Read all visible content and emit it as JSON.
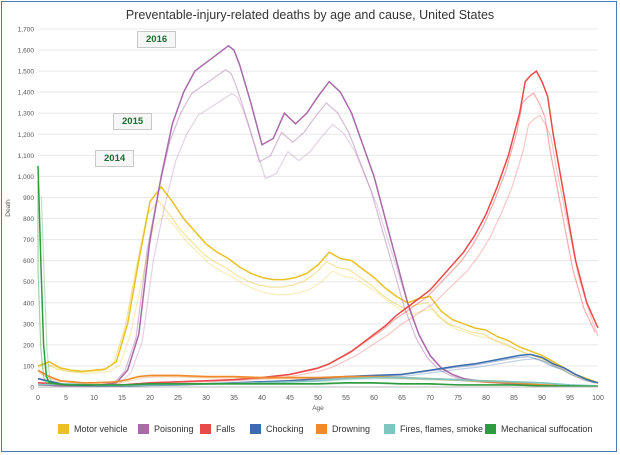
{
  "chart_data": {
    "type": "line",
    "title": "Preventable-injury-related deaths by age and cause, United States",
    "xlabel": "Age",
    "ylabel": "Death",
    "xlim": [
      0,
      100
    ],
    "ylim": [
      0,
      1700
    ],
    "x_ticks": [
      0,
      5,
      10,
      15,
      20,
      25,
      30,
      35,
      40,
      45,
      50,
      55,
      60,
      65,
      70,
      75,
      80,
      85,
      90,
      95,
      100
    ],
    "y_ticks": [
      0,
      100,
      200,
      300,
      400,
      500,
      600,
      700,
      800,
      900,
      1000,
      1100,
      1200,
      1300,
      1400,
      1500,
      1600,
      1700
    ],
    "y_tick_labels": [
      "0",
      "100",
      "200",
      "300",
      "400",
      "500",
      "600",
      "700",
      "800",
      "900",
      "1,000",
      "1,100",
      "1,200",
      "1,300",
      "1,400",
      "1,500",
      "1,600",
      "1,700"
    ],
    "years": [
      "2014",
      "2015",
      "2016"
    ],
    "grid": "horizontal",
    "legend_position": "bottom",
    "series": [
      {
        "name": "Motor vehicle",
        "color": "#e8c224",
        "points": [
          [
            0,
            100
          ],
          [
            2,
            120
          ],
          [
            4,
            90
          ],
          [
            6,
            80
          ],
          [
            8,
            75
          ],
          [
            10,
            80
          ],
          [
            12,
            85
          ],
          [
            14,
            120
          ],
          [
            16,
            300
          ],
          [
            18,
            600
          ],
          [
            20,
            880
          ],
          [
            22,
            950
          ],
          [
            24,
            880
          ],
          [
            26,
            800
          ],
          [
            28,
            740
          ],
          [
            30,
            680
          ],
          [
            32,
            640
          ],
          [
            34,
            610
          ],
          [
            36,
            570
          ],
          [
            38,
            540
          ],
          [
            40,
            520
          ],
          [
            42,
            510
          ],
          [
            44,
            510
          ],
          [
            46,
            520
          ],
          [
            48,
            540
          ],
          [
            50,
            580
          ],
          [
            52,
            640
          ],
          [
            54,
            610
          ],
          [
            56,
            600
          ],
          [
            58,
            560
          ],
          [
            60,
            520
          ],
          [
            62,
            470
          ],
          [
            64,
            430
          ],
          [
            66,
            400
          ],
          [
            68,
            420
          ],
          [
            70,
            430
          ],
          [
            72,
            360
          ],
          [
            74,
            320
          ],
          [
            76,
            300
          ],
          [
            78,
            280
          ],
          [
            80,
            270
          ],
          [
            82,
            240
          ],
          [
            84,
            220
          ],
          [
            86,
            190
          ],
          [
            88,
            170
          ],
          [
            90,
            150
          ],
          [
            92,
            120
          ],
          [
            94,
            90
          ],
          [
            96,
            60
          ],
          [
            98,
            40
          ],
          [
            100,
            20
          ]
        ]
      },
      {
        "name": "Poisoning",
        "color": "#a86aa8",
        "points": [
          [
            0,
            10
          ],
          [
            5,
            5
          ],
          [
            10,
            5
          ],
          [
            14,
            20
          ],
          [
            16,
            80
          ],
          [
            18,
            250
          ],
          [
            20,
            700
          ],
          [
            22,
            1000
          ],
          [
            24,
            1250
          ],
          [
            26,
            1400
          ],
          [
            28,
            1500
          ],
          [
            30,
            1540
          ],
          [
            32,
            1580
          ],
          [
            34,
            1620
          ],
          [
            35,
            1600
          ],
          [
            36,
            1530
          ],
          [
            38,
            1350
          ],
          [
            40,
            1150
          ],
          [
            42,
            1180
          ],
          [
            44,
            1300
          ],
          [
            46,
            1250
          ],
          [
            48,
            1300
          ],
          [
            50,
            1380
          ],
          [
            52,
            1450
          ],
          [
            54,
            1400
          ],
          [
            56,
            1300
          ],
          [
            58,
            1150
          ],
          [
            60,
            1000
          ],
          [
            62,
            800
          ],
          [
            64,
            600
          ],
          [
            66,
            400
          ],
          [
            68,
            250
          ],
          [
            70,
            150
          ],
          [
            72,
            90
          ],
          [
            74,
            60
          ],
          [
            76,
            40
          ],
          [
            80,
            25
          ],
          [
            85,
            15
          ],
          [
            90,
            10
          ],
          [
            95,
            5
          ],
          [
            100,
            3
          ]
        ]
      },
      {
        "name": "Falls",
        "color": "#e84a4a",
        "points": [
          [
            0,
            20
          ],
          [
            10,
            5
          ],
          [
            15,
            10
          ],
          [
            20,
            20
          ],
          [
            25,
            25
          ],
          [
            30,
            30
          ],
          [
            35,
            35
          ],
          [
            40,
            45
          ],
          [
            45,
            60
          ],
          [
            50,
            90
          ],
          [
            52,
            110
          ],
          [
            54,
            140
          ],
          [
            56,
            170
          ],
          [
            58,
            210
          ],
          [
            60,
            250
          ],
          [
            62,
            290
          ],
          [
            64,
            340
          ],
          [
            66,
            380
          ],
          [
            68,
            420
          ],
          [
            70,
            460
          ],
          [
            72,
            520
          ],
          [
            74,
            580
          ],
          [
            76,
            640
          ],
          [
            78,
            720
          ],
          [
            80,
            820
          ],
          [
            82,
            950
          ],
          [
            84,
            1100
          ],
          [
            86,
            1300
          ],
          [
            87,
            1450
          ],
          [
            88,
            1480
          ],
          [
            89,
            1500
          ],
          [
            90,
            1450
          ],
          [
            91,
            1380
          ],
          [
            92,
            1200
          ],
          [
            94,
            900
          ],
          [
            96,
            600
          ],
          [
            98,
            400
          ],
          [
            100,
            280
          ]
        ]
      },
      {
        "name": "Chocking",
        "color": "#3d6bab",
        "points": [
          [
            0,
            40
          ],
          [
            5,
            10
          ],
          [
            10,
            5
          ],
          [
            15,
            5
          ],
          [
            20,
            8
          ],
          [
            25,
            10
          ],
          [
            30,
            15
          ],
          [
            35,
            20
          ],
          [
            40,
            25
          ],
          [
            45,
            30
          ],
          [
            50,
            40
          ],
          [
            55,
            50
          ],
          [
            60,
            55
          ],
          [
            65,
            60
          ],
          [
            70,
            80
          ],
          [
            75,
            100
          ],
          [
            78,
            110
          ],
          [
            80,
            120
          ],
          [
            82,
            130
          ],
          [
            84,
            140
          ],
          [
            86,
            150
          ],
          [
            88,
            155
          ],
          [
            90,
            140
          ],
          [
            92,
            110
          ],
          [
            94,
            90
          ],
          [
            96,
            60
          ],
          [
            98,
            35
          ],
          [
            100,
            20
          ]
        ]
      },
      {
        "name": "Drowning",
        "color": "#ef8a2a",
        "points": [
          [
            0,
            80
          ],
          [
            2,
            50
          ],
          [
            4,
            30
          ],
          [
            6,
            25
          ],
          [
            8,
            20
          ],
          [
            10,
            20
          ],
          [
            14,
            25
          ],
          [
            16,
            35
          ],
          [
            18,
            50
          ],
          [
            20,
            55
          ],
          [
            25,
            55
          ],
          [
            30,
            50
          ],
          [
            35,
            50
          ],
          [
            40,
            45
          ],
          [
            45,
            45
          ],
          [
            50,
            45
          ],
          [
            55,
            50
          ],
          [
            60,
            50
          ],
          [
            65,
            45
          ],
          [
            70,
            40
          ],
          [
            75,
            35
          ],
          [
            80,
            25
          ],
          [
            85,
            20
          ],
          [
            90,
            10
          ],
          [
            95,
            5
          ],
          [
            100,
            2
          ]
        ]
      },
      {
        "name": "Fires, flames, smoke",
        "color": "#7fc5c0",
        "points": [
          [
            0,
            10
          ],
          [
            5,
            15
          ],
          [
            10,
            10
          ],
          [
            15,
            8
          ],
          [
            20,
            10
          ],
          [
            25,
            12
          ],
          [
            30,
            15
          ],
          [
            35,
            18
          ],
          [
            40,
            20
          ],
          [
            45,
            25
          ],
          [
            50,
            30
          ],
          [
            55,
            40
          ],
          [
            60,
            45
          ],
          [
            65,
            45
          ],
          [
            70,
            40
          ],
          [
            75,
            35
          ],
          [
            80,
            30
          ],
          [
            85,
            25
          ],
          [
            90,
            20
          ],
          [
            95,
            10
          ],
          [
            100,
            5
          ]
        ]
      },
      {
        "name": "Mechanical suffocation",
        "color": "#2e9b3e",
        "points": [
          [
            0,
            1050
          ],
          [
            0.5,
            600
          ],
          [
            1,
            200
          ],
          [
            1.5,
            50
          ],
          [
            2,
            20
          ],
          [
            5,
            10
          ],
          [
            10,
            10
          ],
          [
            15,
            10
          ],
          [
            20,
            15
          ],
          [
            25,
            15
          ],
          [
            30,
            15
          ],
          [
            35,
            15
          ],
          [
            40,
            15
          ],
          [
            45,
            15
          ],
          [
            50,
            15
          ],
          [
            55,
            20
          ],
          [
            60,
            20
          ],
          [
            65,
            15
          ],
          [
            70,
            15
          ],
          [
            75,
            10
          ],
          [
            80,
            10
          ],
          [
            85,
            10
          ],
          [
            90,
            5
          ],
          [
            95,
            5
          ],
          [
            100,
            3
          ]
        ]
      }
    ]
  }
}
